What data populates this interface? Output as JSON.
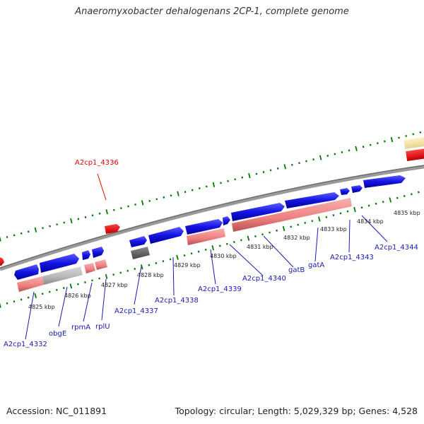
{
  "title": "Anaeromyxobacter dehalogenans 2CP-1, complete genome",
  "footer": {
    "accession": "Accession: NC_011891",
    "topology": "Topology: circular; Length: 5,029,329 bp; Genes: 4,528"
  },
  "scale_labels": [
    "4825 kbp",
    "4826 kbp",
    "4827 kbp",
    "4828 kbp",
    "4829 kbp",
    "4830 kbp",
    "4831 kbp",
    "4832 kbp",
    "4833 kbp",
    "4834 kbp",
    "4835 kbp"
  ],
  "gene_labels_bottom": [
    "A2cp1_4332",
    "obgE",
    "rpmA",
    "rplU",
    "A2cp1_4337",
    "A2cp1_4338",
    "A2cp1_4339",
    "A2cp1_4340",
    "gatB",
    "gatA",
    "A2cp1_4343",
    "A2cp1_4344"
  ],
  "gene_label_top": "A2cp1_4336",
  "colors": {
    "cds_forward": "#1a1ae6",
    "rna_track": "#f08080",
    "highlight": "#e60000",
    "backbone": "#808080",
    "ticks": "#007a00",
    "label": "#1a1ab0",
    "label_highlight": "#e60000"
  }
}
